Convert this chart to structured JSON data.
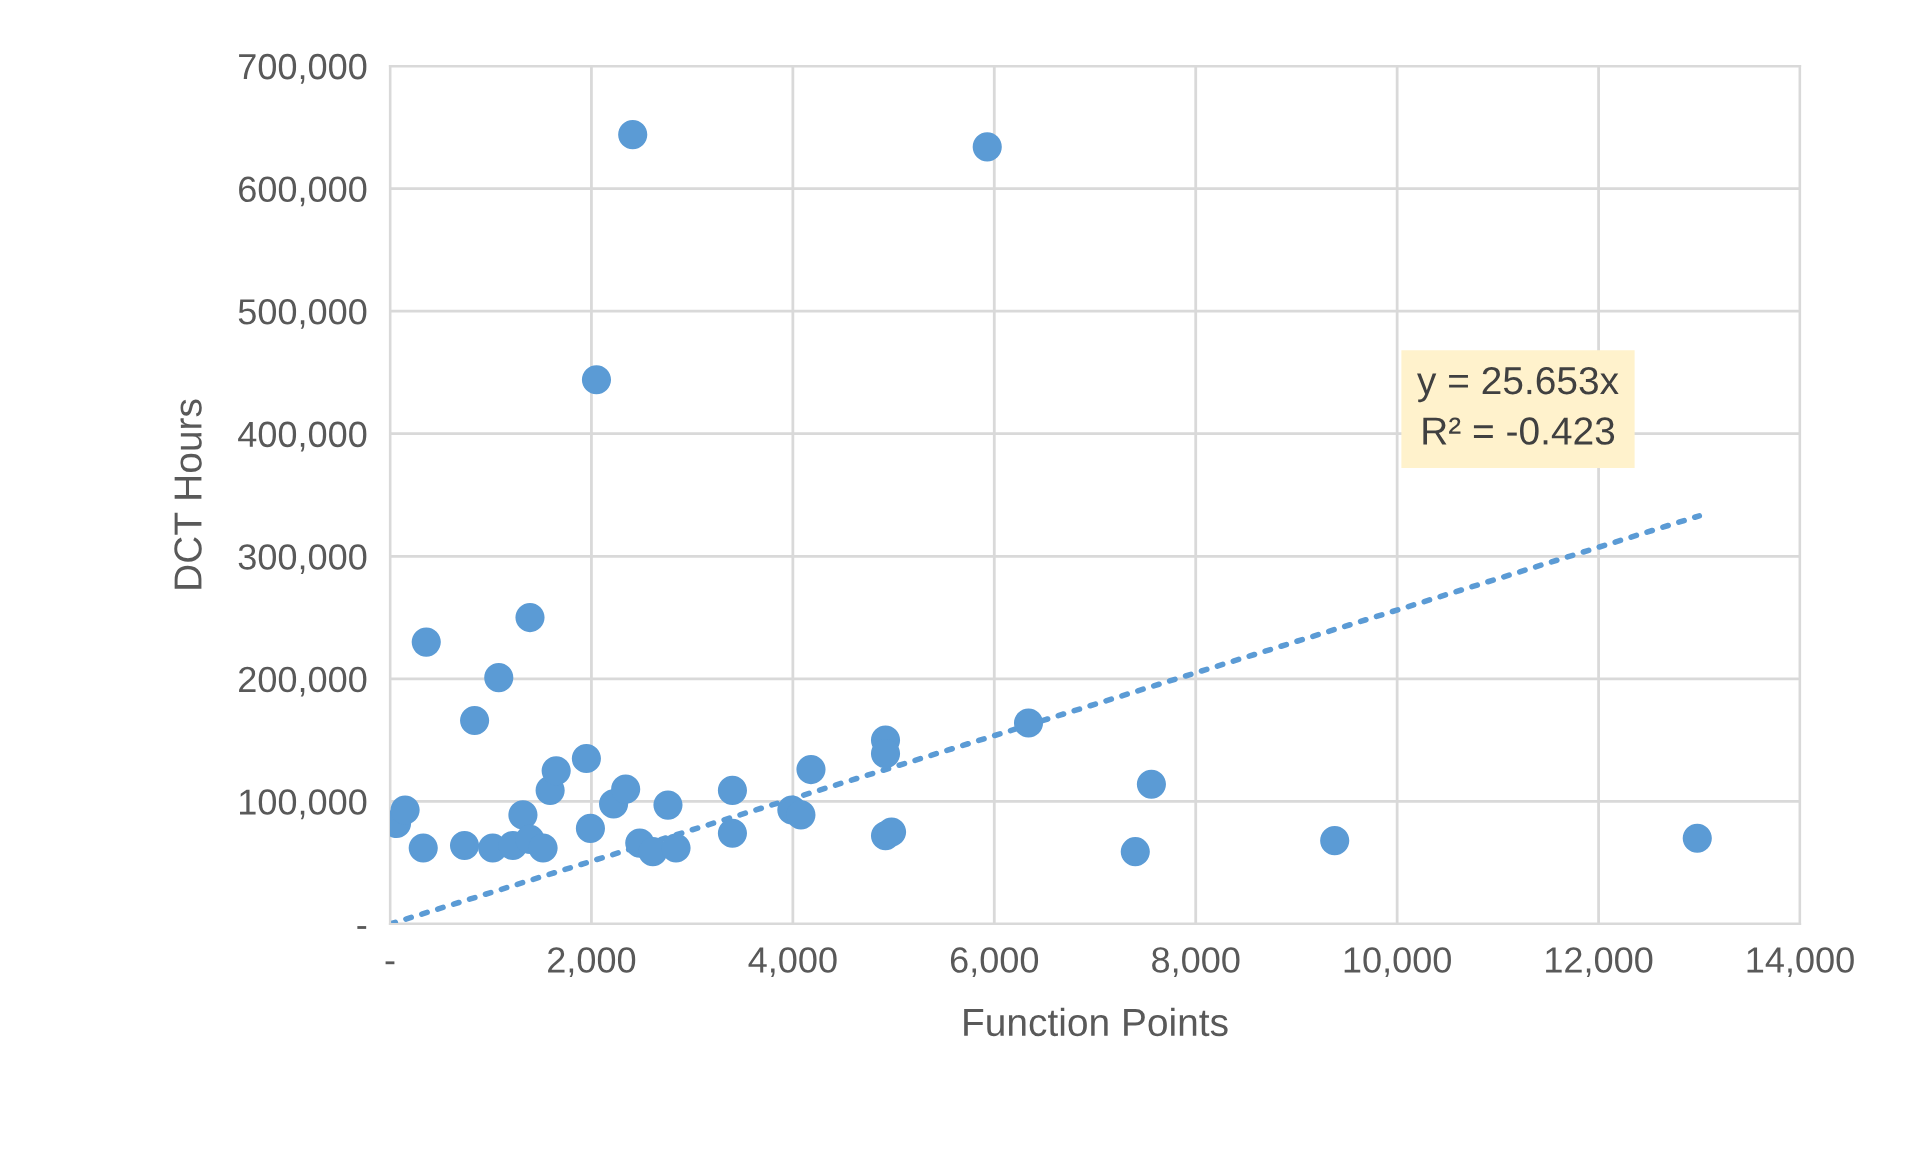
{
  "chart_data": {
    "type": "scatter",
    "xlabel": "Function Points",
    "ylabel": "DCT Hours",
    "series": [
      {
        "color": "#5b9bd5",
        "marker": "circle",
        "x": [
          65,
          150,
          330,
          360,
          840,
          1080,
          1390,
          740,
          1020,
          1220,
          1320,
          1390,
          1520,
          1590,
          1650,
          1950,
          1990,
          2220,
          2340,
          2480,
          2610,
          2840,
          2760,
          3400,
          3400,
          3990,
          4080,
          4180,
          4920,
          4920,
          4920,
          4980,
          6340,
          7560,
          7400,
          9380,
          12980,
          2410,
          5930,
          2050
        ],
        "values": [
          82000,
          93000,
          62000,
          230000,
          166000,
          201000,
          250000,
          64000,
          62000,
          64000,
          89000,
          69000,
          62000,
          109000,
          125000,
          135000,
          78000,
          98000,
          110000,
          66000,
          59000,
          62000,
          97000,
          109000,
          74000,
          93000,
          89000,
          126000,
          150000,
          139000,
          72000,
          75000,
          164000,
          114000,
          59000,
          68000,
          70000,
          644000,
          634000,
          444000
        ]
      },
      {
        "type": "line",
        "color": "#5b9bd5",
        "line_style": "dotted",
        "x": [
          0,
          13000
        ],
        "values": [
          0,
          333000
        ]
      }
    ],
    "annotations": [
      "y = 25.653x\nR² = -0.423"
    ],
    "xlim": [
      0,
      14000
    ],
    "ylim": [
      0,
      700000
    ],
    "xticks": [
      {
        "value": 0,
        "label": "-"
      },
      {
        "value": 2000,
        "label": "2,000"
      },
      {
        "value": 4000,
        "label": "4,000"
      },
      {
        "value": 6000,
        "label": "6,000"
      },
      {
        "value": 8000,
        "label": "8,000"
      },
      {
        "value": 10000,
        "label": "10,000"
      },
      {
        "value": 12000,
        "label": "12,000"
      },
      {
        "value": 14000,
        "label": "14,000"
      }
    ],
    "yticks": [
      {
        "value": 0,
        "label": "-"
      },
      {
        "value": 100000,
        "label": "100,000"
      },
      {
        "value": 200000,
        "label": "200,000"
      },
      {
        "value": 300000,
        "label": "300,000"
      },
      {
        "value": 400000,
        "label": "400,000"
      },
      {
        "value": 500000,
        "label": "500,000"
      },
      {
        "value": 600000,
        "label": "600,000"
      },
      {
        "value": 700000,
        "label": "700,000"
      }
    ],
    "grid": true,
    "legend": false
  }
}
